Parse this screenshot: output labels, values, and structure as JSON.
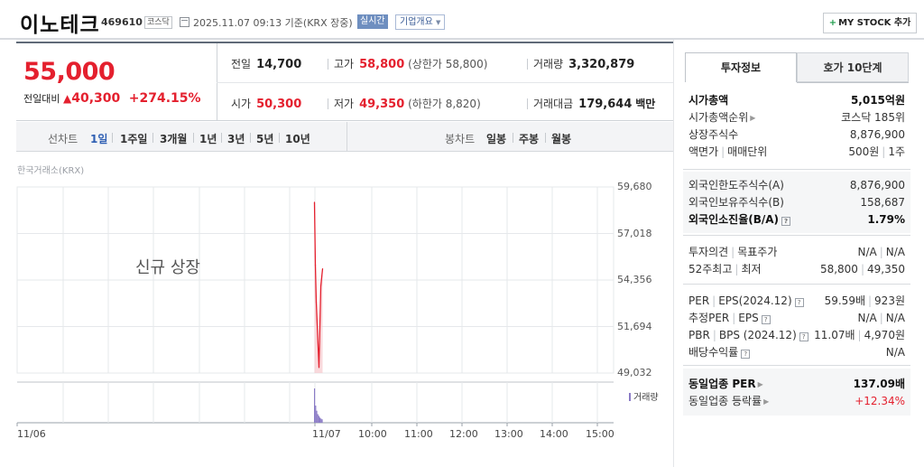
{
  "header": {
    "stock_name": "이노테크",
    "stock_code": "469610",
    "market_tag": "코스닥",
    "datetime": "2025.11.07 09:13 기준(KRX 장중)",
    "realtime_label": "실시간",
    "overview_label": "기업개요",
    "overview_icon": "chevron-down-icon",
    "my_stock_label": "MY STOCK 추가"
  },
  "summary": {
    "current_price": "55,000",
    "change_label": "전일대비",
    "change_value": "40,300",
    "change_pct": "+274.15%",
    "prev_close_label": "전일",
    "prev_close": "14,700",
    "high_label": "고가",
    "high": "58,800",
    "upper_limit": "(상한가 58,800)",
    "volume_label": "거래량",
    "volume": "3,320,879",
    "open_label": "시가",
    "open": "50,300",
    "low_label": "저가",
    "low": "49,350",
    "lower_limit": "(하한가 8,820)",
    "value_label": "거래대금",
    "value": "179,644",
    "value_unit": "백만"
  },
  "periods": {
    "line_label": "선차트",
    "line_items": [
      "1일",
      "1주일",
      "3개월",
      "1년",
      "3년",
      "5년",
      "10년"
    ],
    "active": "1일",
    "candle_label": "봉차트",
    "candle_items": [
      "일봉",
      "주봉",
      "월봉"
    ]
  },
  "chart": {
    "source": "한국거래소(KRX)",
    "annotation": "신규 상장",
    "volume_legend": "거래량",
    "colors": {
      "price": "#e4202e",
      "volume": "#8a7bc6",
      "grid": "#e6e8eb"
    }
  },
  "chart_data": {
    "type": "line",
    "title": "",
    "y_ticks": [
      "59,680",
      "57,018",
      "54,356",
      "51,694",
      "49,032"
    ],
    "x_ticks": [
      "11/06",
      "11/07",
      "10:00",
      "11:00",
      "12:00",
      "13:00",
      "14:00",
      "15:00"
    ],
    "ylim": [
      49032,
      59680
    ],
    "series": [
      {
        "values": [
          58800,
          55200,
          53100,
          49350,
          54000,
          55000
        ]
      }
    ],
    "volume_series": [
      {
        "values": [
          1.0,
          0.5,
          0.35,
          0.25,
          0.2,
          0.15,
          0.12,
          0.1
        ]
      }
    ],
    "grid": true,
    "legend": "bottom-right"
  },
  "panel": {
    "tab_active": "투자정보",
    "tab_inactive": "호가 10단계",
    "market_cap_label": "시가총액",
    "market_cap": "5,015억원",
    "market_cap_rank_label": "시가총액순위",
    "market_cap_rank": "코스닥 185위",
    "shares_label": "상장주식수",
    "shares": "8,876,900",
    "par_label": "액면가",
    "unit_label": "매매단위",
    "par": "500원",
    "unit": "1주",
    "foreign_limit_label": "외국인한도주식수(A)",
    "foreign_limit": "8,876,900",
    "foreign_hold_label": "외국인보유주식수(B)",
    "foreign_hold": "158,687",
    "foreign_ratio_label": "외국인소진율(B/A)",
    "foreign_ratio": "1.79%",
    "opinion_label": "투자의견",
    "target_label": "목표주가",
    "opinion": "N/A",
    "target": "N/A",
    "w52_high_label": "52주최고",
    "w52_low_label": "최저",
    "w52_high": "58,800",
    "w52_low": "49,350",
    "per_label": "PER",
    "eps_label": "EPS(2024.12)",
    "per": "59.59배",
    "eps": "923원",
    "est_per_label": "추정PER",
    "est_eps_label": "EPS",
    "est_per": "N/A",
    "est_eps": "N/A",
    "pbr_label": "PBR",
    "bps_label": "BPS (2024.12)",
    "pbr": "11.07배",
    "bps": "4,970원",
    "div_label": "배당수익률",
    "div": "N/A",
    "ind_per_label": "동일업종 PER",
    "ind_per": "137.09배",
    "ind_rate_label": "동일업종 등락률",
    "ind_rate": "+12.34%"
  }
}
